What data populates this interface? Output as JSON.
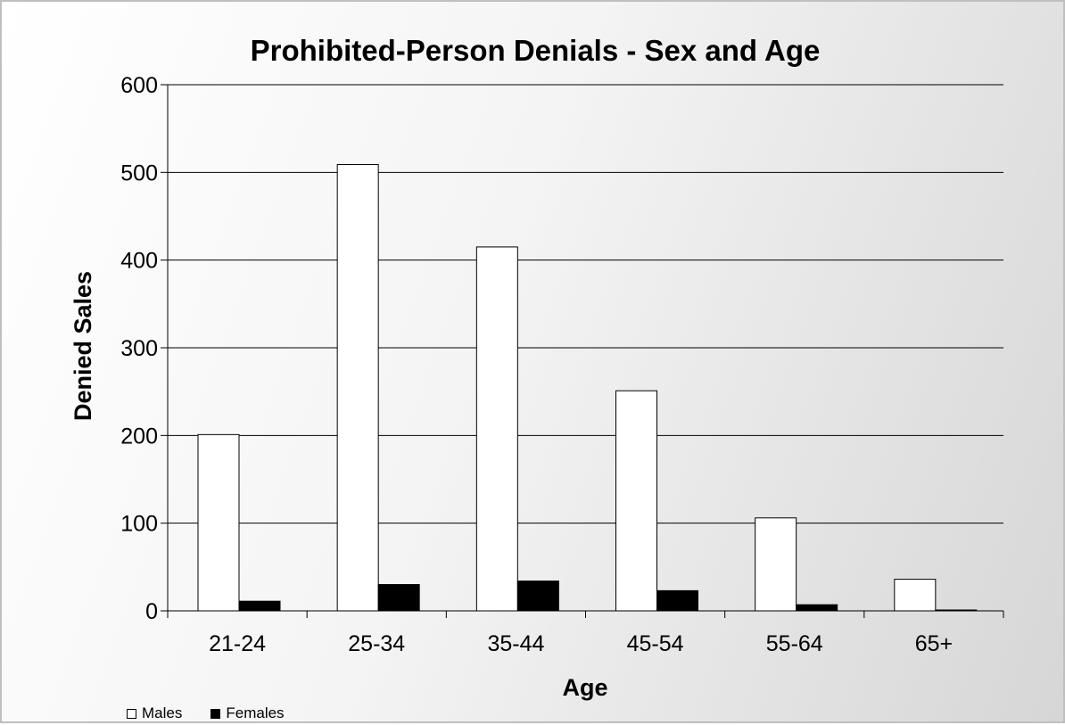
{
  "chart_data": {
    "type": "bar",
    "title": "Prohibited-Person Denials - Sex and Age",
    "xlabel": "Age",
    "ylabel": "Denied Sales",
    "categories": [
      "21-24",
      "25-34",
      "35-44",
      "45-54",
      "55-64",
      "65+"
    ],
    "series": [
      {
        "name": "Males",
        "color": "#ffffff",
        "values": [
          201,
          509,
          415,
          251,
          106,
          36
        ]
      },
      {
        "name": "Females",
        "color": "#000000",
        "values": [
          11,
          30,
          34,
          23,
          7,
          1
        ]
      }
    ],
    "ylim": [
      0,
      600
    ],
    "yticks": [
      0,
      100,
      200,
      300,
      400,
      500,
      600
    ],
    "grid": true,
    "legend_position": "bottom-left"
  }
}
